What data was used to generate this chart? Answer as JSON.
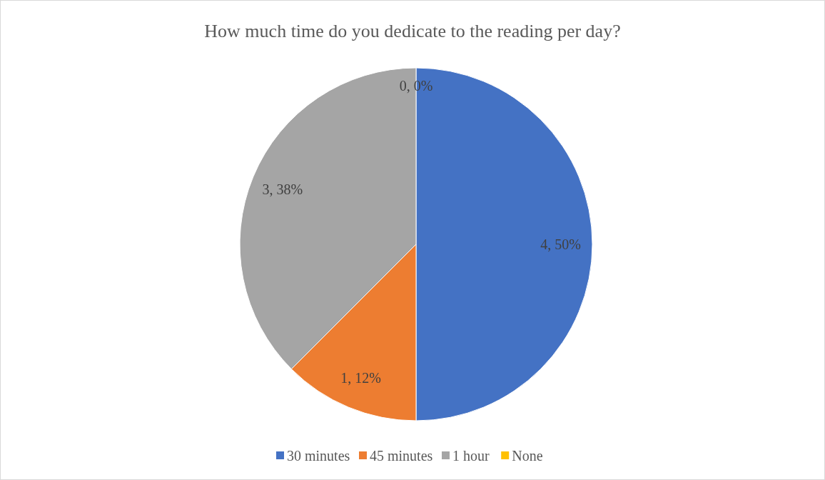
{
  "chart_data": {
    "type": "pie",
    "title": "How much time do you dedicate to the reading per day?",
    "categories": [
      "30 minutes",
      "45 minutes",
      "1 hour",
      "None"
    ],
    "values": [
      4,
      1,
      3,
      0
    ],
    "colors": [
      "#4472c4",
      "#ed7d31",
      "#a5a5a5",
      "#ffc000"
    ],
    "value_labels": [
      "4, 50%",
      "1, 12%",
      "3, 38%",
      "0, 0%"
    ],
    "legend": "bottom"
  }
}
